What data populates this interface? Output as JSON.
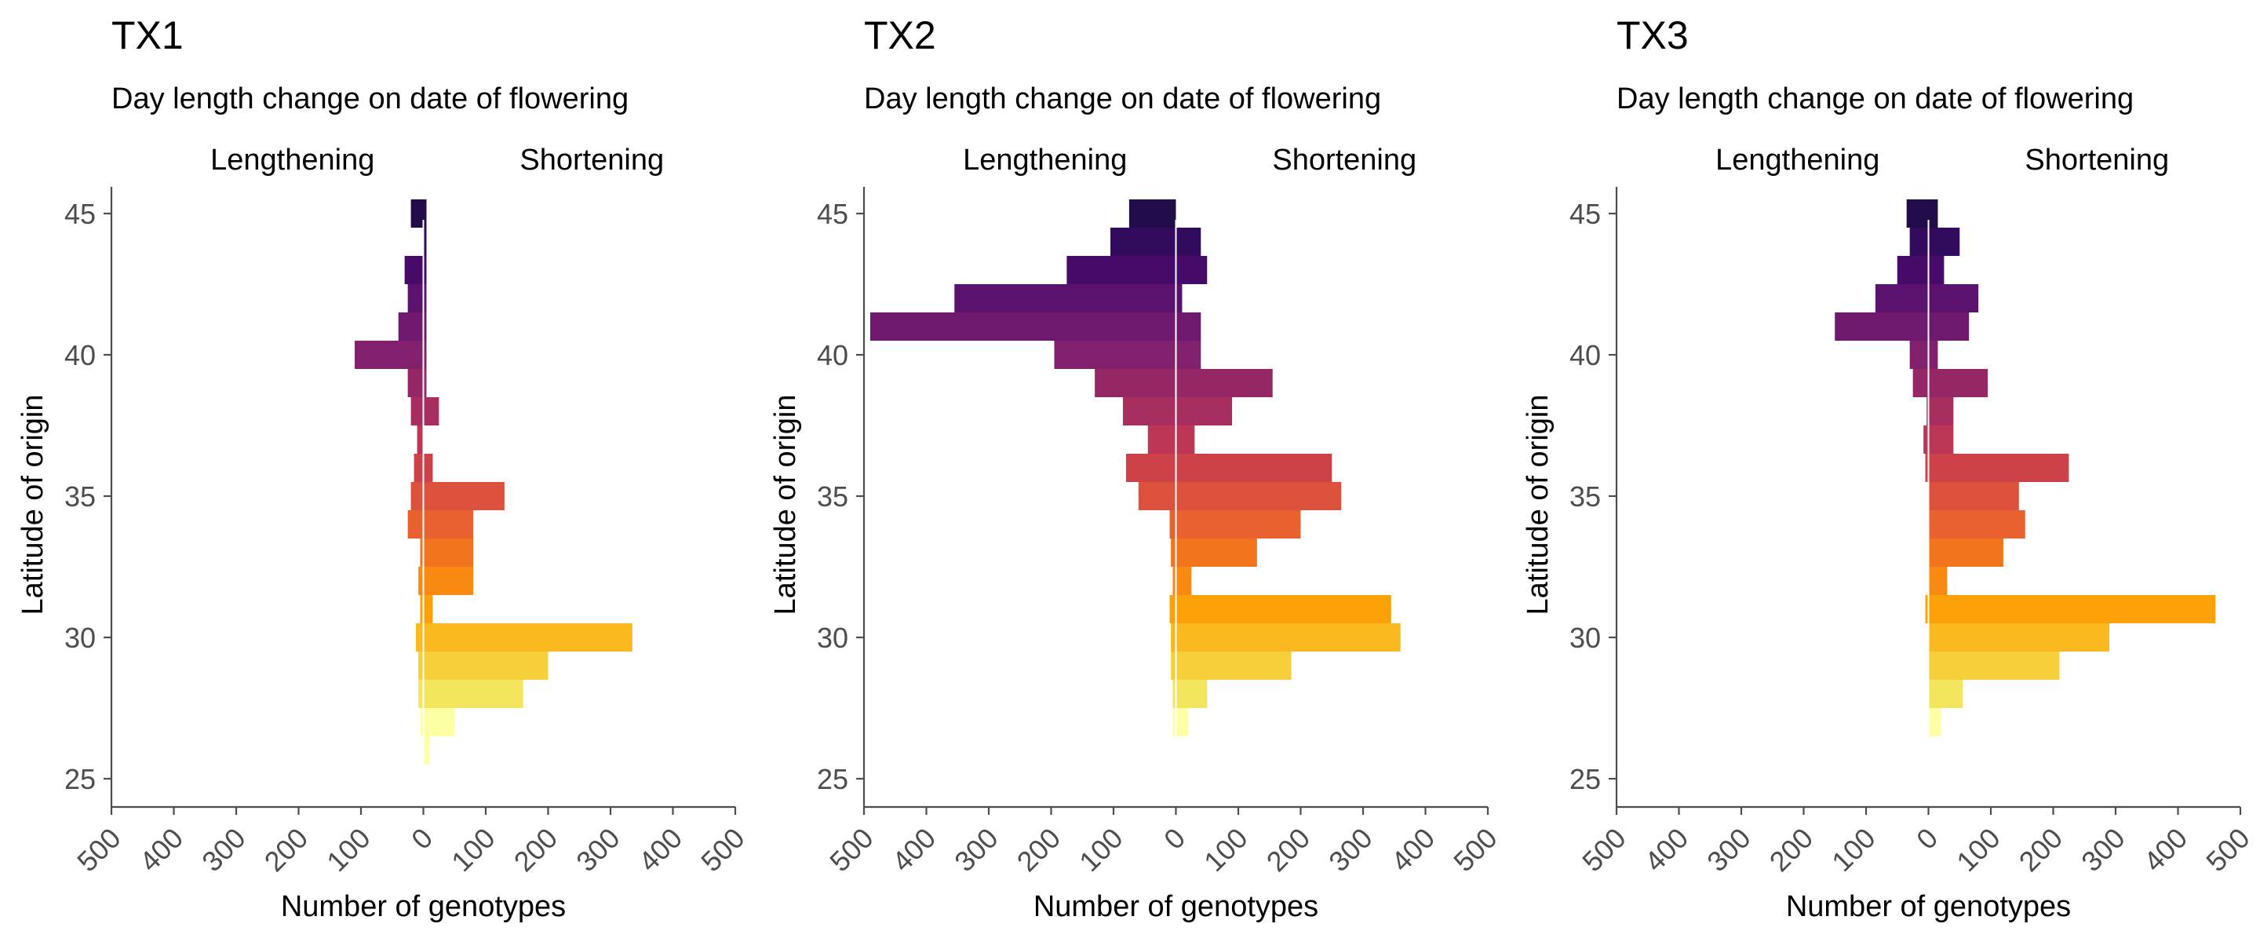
{
  "chart_data": [
    {
      "type": "bar",
      "orientation": "horizontal-diverging",
      "title": "TX1",
      "subtitle": "Day length change on date of flowering",
      "left_label": "Lengthening",
      "right_label": "Shortening",
      "xlabel": "Number of genotypes",
      "ylabel": "Latitude of origin",
      "xlim": [
        -500,
        500
      ],
      "ylim": [
        24,
        46
      ],
      "yticks": [
        25,
        30,
        35,
        40,
        45
      ],
      "xticks": [
        -500,
        -400,
        -300,
        -200,
        -100,
        0,
        100,
        200,
        300,
        400,
        500
      ],
      "xtick_labels": [
        "500",
        "400",
        "300",
        "200",
        "100",
        "0",
        "100",
        "200",
        "300",
        "400",
        "500"
      ],
      "latitude_bins": [
        45,
        44,
        43,
        42,
        41,
        40,
        39,
        38,
        37,
        36,
        35,
        34,
        33,
        32,
        31,
        30,
        29,
        28,
        27,
        26,
        25
      ],
      "lengthening": [
        20,
        0,
        30,
        25,
        40,
        110,
        25,
        20,
        10,
        15,
        20,
        25,
        5,
        8,
        5,
        12,
        8,
        8,
        5,
        0,
        0
      ],
      "shortening": [
        5,
        5,
        5,
        5,
        5,
        5,
        5,
        25,
        0,
        15,
        130,
        80,
        80,
        80,
        15,
        335,
        200,
        160,
        50,
        10,
        0
      ]
    },
    {
      "type": "bar",
      "orientation": "horizontal-diverging",
      "title": "TX2",
      "subtitle": "Day length change on date of flowering",
      "left_label": "Lengthening",
      "right_label": "Shortening",
      "xlabel": "Number of genotypes",
      "ylabel": "Latitude of origin",
      "xlim": [
        -500,
        500
      ],
      "ylim": [
        24,
        46
      ],
      "yticks": [
        25,
        30,
        35,
        40,
        45
      ],
      "xticks": [
        -500,
        -400,
        -300,
        -200,
        -100,
        0,
        100,
        200,
        300,
        400,
        500
      ],
      "xtick_labels": [
        "500",
        "400",
        "300",
        "200",
        "100",
        "0",
        "100",
        "200",
        "300",
        "400",
        "500"
      ],
      "latitude_bins": [
        45,
        44,
        43,
        42,
        41,
        40,
        39,
        38,
        37,
        36,
        35,
        34,
        33,
        32,
        31,
        30,
        29,
        28,
        27,
        26,
        25
      ],
      "lengthening": [
        75,
        105,
        175,
        355,
        490,
        195,
        130,
        85,
        45,
        80,
        60,
        10,
        8,
        5,
        10,
        8,
        8,
        5,
        5,
        0,
        0
      ],
      "shortening": [
        0,
        40,
        50,
        10,
        40,
        40,
        155,
        90,
        30,
        250,
        265,
        200,
        130,
        25,
        345,
        360,
        185,
        50,
        20,
        0,
        0
      ]
    },
    {
      "type": "bar",
      "orientation": "horizontal-diverging",
      "title": "TX3",
      "subtitle": "Day length change on date of flowering",
      "left_label": "Lengthening",
      "right_label": "Shortening",
      "xlabel": "Number of genotypes",
      "ylabel": "Latitude of origin",
      "xlim": [
        -500,
        500
      ],
      "ylim": [
        24,
        46
      ],
      "yticks": [
        25,
        30,
        35,
        40,
        45
      ],
      "xticks": [
        -500,
        -400,
        -300,
        -200,
        -100,
        0,
        100,
        200,
        300,
        400,
        500
      ],
      "xtick_labels": [
        "500",
        "400",
        "300",
        "200",
        "100",
        "0",
        "100",
        "200",
        "300",
        "400",
        "500"
      ],
      "latitude_bins": [
        45,
        44,
        43,
        42,
        41,
        40,
        39,
        38,
        37,
        36,
        35,
        34,
        33,
        32,
        31,
        30,
        29,
        28,
        27,
        26,
        25
      ],
      "lengthening": [
        35,
        30,
        50,
        85,
        150,
        30,
        25,
        3,
        8,
        5,
        0,
        0,
        0,
        0,
        5,
        0,
        0,
        0,
        0,
        0,
        0
      ],
      "shortening": [
        15,
        50,
        25,
        80,
        65,
        15,
        95,
        40,
        40,
        225,
        145,
        155,
        120,
        30,
        460,
        290,
        210,
        55,
        20,
        0,
        0
      ]
    }
  ],
  "colors": {
    "bins_north_to_south": [
      "#1f0c48",
      "#320a5e",
      "#460a68",
      "#5a126e",
      "#6e196e",
      "#81206c",
      "#952767",
      "#a82e5f",
      "#bb3755",
      "#cc4248",
      "#dc513b",
      "#e8612e",
      "#f2741f",
      "#f88a11",
      "#fca108",
      "#fbb91f",
      "#f7cf3a",
      "#f3e55d",
      "#fcffa4",
      "#fcffa4",
      "#fcffa4"
    ],
    "axis": "#4d4d4d"
  }
}
